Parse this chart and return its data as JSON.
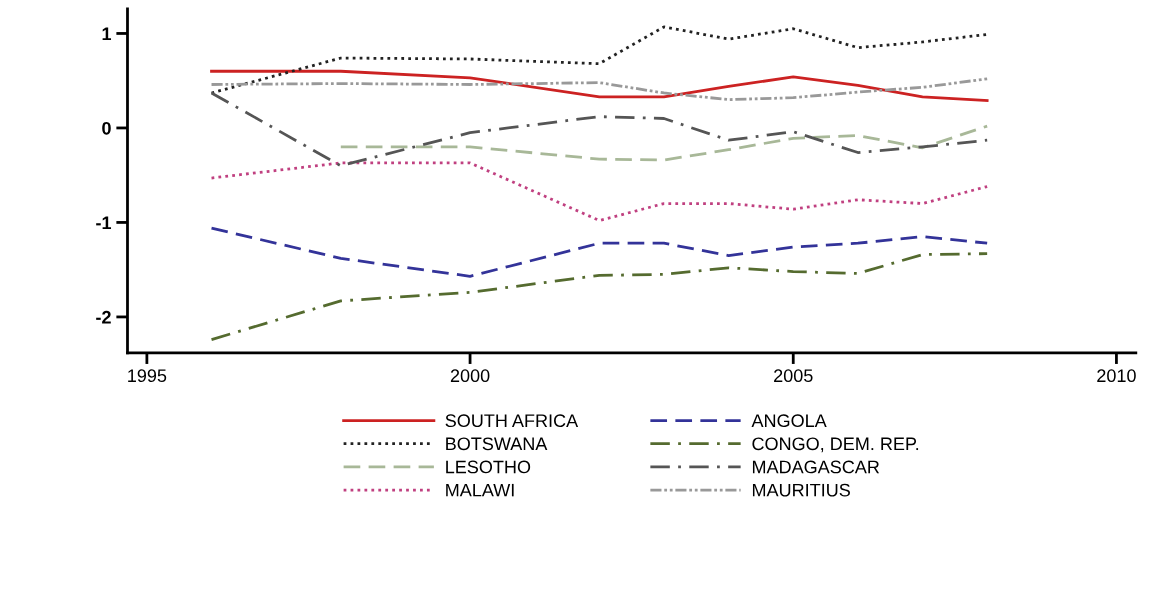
{
  "chart_data": {
    "type": "line",
    "x": [
      1996,
      1998,
      2000,
      2002,
      2003,
      2004,
      2005,
      2006,
      2007,
      2008
    ],
    "xlim": [
      1994.7,
      2010.3
    ],
    "xticks": [
      1995,
      2000,
      2005,
      2010
    ],
    "ylim": [
      -2.38,
      1.26
    ],
    "yticks": [
      -2,
      -1,
      0,
      1
    ],
    "grid": false,
    "legend": "bottom",
    "marker": "none",
    "series": [
      {
        "name": "SOUTH AFRICA",
        "color": "#cc2222",
        "line_style": "solid",
        "values": [
          0.6,
          0.6,
          0.53,
          0.33,
          0.33,
          0.44,
          0.54,
          0.45,
          0.33,
          0.29
        ]
      },
      {
        "name": "BOTSWANA",
        "color": "#222222",
        "line_style": "dotted",
        "values": [
          0.37,
          0.74,
          0.73,
          0.68,
          1.07,
          0.94,
          1.05,
          0.85,
          0.91,
          0.99
        ]
      },
      {
        "name": "LESOTHO",
        "color": "#a8b898",
        "line_style": "dashed",
        "x": [
          1998,
          2000,
          2002,
          2003,
          2004,
          2005,
          2006,
          2007,
          2008
        ],
        "values": [
          -0.2,
          -0.2,
          -0.33,
          -0.34,
          -0.23,
          -0.11,
          -0.08,
          -0.21,
          0.02
        ]
      },
      {
        "name": "MALAWI",
        "color": "#c04080",
        "line_style": "dotted",
        "values": [
          -0.53,
          -0.37,
          -0.37,
          -0.98,
          -0.8,
          -0.8,
          -0.86,
          -0.76,
          -0.8,
          -0.62
        ]
      },
      {
        "name": "ANGOLA",
        "color": "#333399",
        "line_style": "dashed",
        "values": [
          -1.06,
          -1.38,
          -1.57,
          -1.22,
          -1.22,
          -1.35,
          -1.26,
          -1.22,
          -1.15,
          -1.22
        ]
      },
      {
        "name": "CONGO, DEM. REP.",
        "color": "#556b2f",
        "line_style": "dashdot",
        "values": [
          -2.24,
          -1.83,
          -1.74,
          -1.56,
          -1.55,
          -1.48,
          -1.52,
          -1.54,
          -1.34,
          -1.33
        ]
      },
      {
        "name": "MADAGASCAR",
        "color": "#555555",
        "line_style": "dashdot",
        "values": [
          0.37,
          -0.4,
          -0.05,
          0.12,
          0.1,
          -0.13,
          -0.04,
          -0.26,
          -0.2,
          -0.13
        ]
      },
      {
        "name": "MAURITIUS",
        "color": "#999999",
        "line_style": "dashdotdot",
        "values": [
          0.46,
          0.47,
          0.46,
          0.48,
          0.37,
          0.3,
          0.32,
          0.38,
          0.43,
          0.52
        ]
      }
    ]
  }
}
